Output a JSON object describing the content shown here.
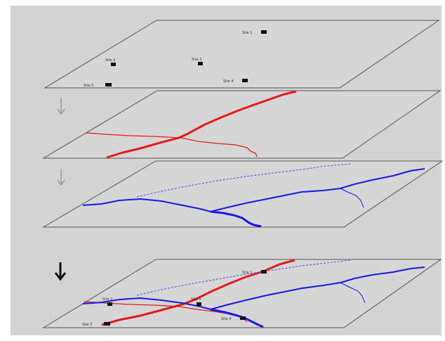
{
  "diagram": {
    "background_color": "#d3d3d3",
    "frame_color": "#ffffff",
    "plane_fill": "#d6d6d6",
    "plane_stroke": "#555555",
    "layers": [
      {
        "id": "sites",
        "description_color": "#111111",
        "markers": [
          {
            "id": "site-1",
            "label": "Site 1"
          },
          {
            "id": "site-2",
            "label": "Site 2"
          },
          {
            "id": "site-3",
            "label": "Site 3"
          },
          {
            "id": "site-4",
            "label": "Site 4"
          },
          {
            "id": "site-5",
            "label": "Site 5"
          }
        ]
      },
      {
        "id": "red-network",
        "line_color": "#e41b1b"
      },
      {
        "id": "blue-network",
        "line_color": "#1a1ae0"
      },
      {
        "id": "combined",
        "line_colors": [
          "#e41b1b",
          "#1a1ae0"
        ]
      }
    ],
    "arrows": [
      {
        "id": "arrow-1",
        "weight": "thin",
        "color": "#8a8a8a"
      },
      {
        "id": "arrow-2",
        "weight": "thin",
        "color": "#8a8a8a"
      },
      {
        "id": "arrow-3",
        "weight": "bold",
        "color": "#111111"
      }
    ]
  }
}
